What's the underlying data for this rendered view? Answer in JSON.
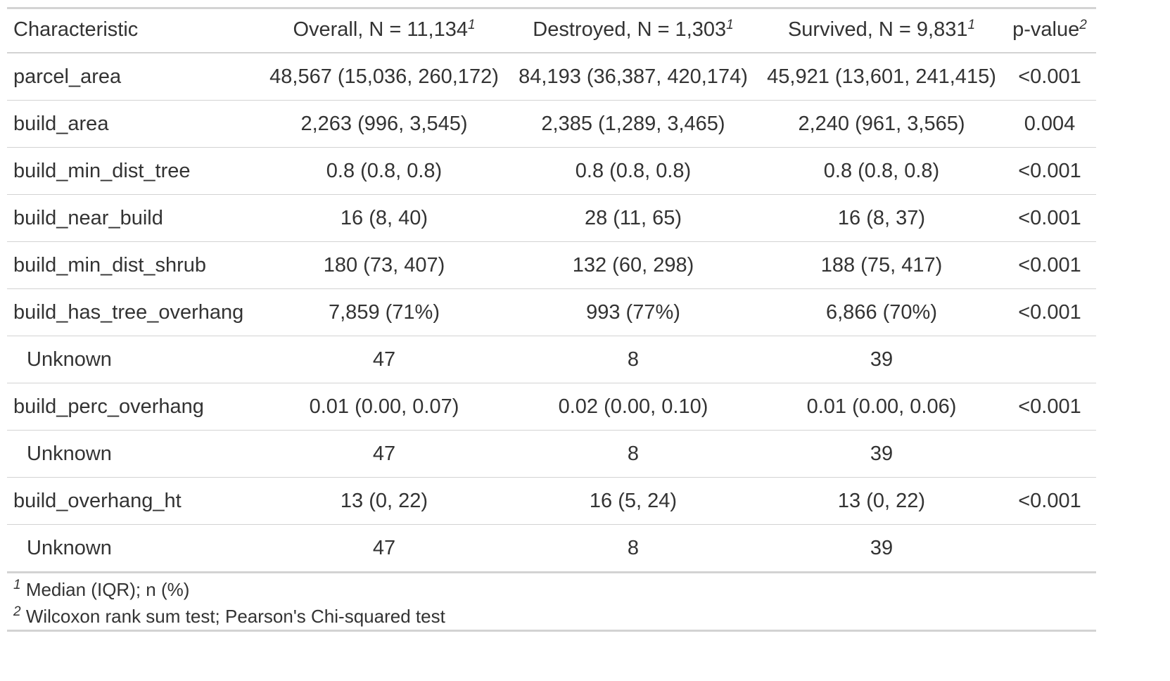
{
  "header": {
    "characteristic": "Characteristic",
    "overall": "Overall, N = 11,134",
    "destroyed": "Destroyed, N = 1,303",
    "survived": "Survived, N = 9,831",
    "pvalue": "p-value",
    "fn1": "1",
    "fn2": "2"
  },
  "rows": [
    {
      "label": "parcel_area",
      "overall": "48,567 (15,036, 260,172)",
      "destroyed": "84,193 (36,387, 420,174)",
      "survived": "45,921 (13,601, 241,415)",
      "p": "<0.001"
    },
    {
      "label": "build_area",
      "overall": "2,263 (996, 3,545)",
      "destroyed": "2,385 (1,289, 3,465)",
      "survived": "2,240 (961, 3,565)",
      "p": "0.004"
    },
    {
      "label": "build_min_dist_tree",
      "overall": "0.8 (0.8, 0.8)",
      "destroyed": "0.8 (0.8, 0.8)",
      "survived": "0.8 (0.8, 0.8)",
      "p": "<0.001"
    },
    {
      "label": "build_near_build",
      "overall": "16 (8, 40)",
      "destroyed": "28 (11, 65)",
      "survived": "16 (8, 37)",
      "p": "<0.001"
    },
    {
      "label": "build_min_dist_shrub",
      "overall": "180 (73, 407)",
      "destroyed": "132 (60, 298)",
      "survived": "188 (75, 417)",
      "p": "<0.001"
    },
    {
      "label": "build_has_tree_overhang",
      "overall": "7,859 (71%)",
      "destroyed": "993 (77%)",
      "survived": "6,866 (70%)",
      "p": "<0.001"
    },
    {
      "label": "Unknown",
      "overall": "47",
      "destroyed": "8",
      "survived": "39",
      "p": ""
    },
    {
      "label": "build_perc_overhang",
      "overall": "0.01 (0.00, 0.07)",
      "destroyed": "0.02 (0.00, 0.10)",
      "survived": "0.01 (0.00, 0.06)",
      "p": "<0.001"
    },
    {
      "label": "Unknown",
      "overall": "47",
      "destroyed": "8",
      "survived": "39",
      "p": ""
    },
    {
      "label": "build_overhang_ht",
      "overall": "13 (0, 22)",
      "destroyed": "16 (5, 24)",
      "survived": "13 (0, 22)",
      "p": "<0.001"
    },
    {
      "label": "Unknown",
      "overall": "47",
      "destroyed": "8",
      "survived": "39",
      "p": ""
    }
  ],
  "footnotes": [
    {
      "mark": "1",
      "text": "Median (IQR); n (%)"
    },
    {
      "mark": "2",
      "text": "Wilcoxon rank sum test; Pearson's Chi-squared test"
    }
  ]
}
